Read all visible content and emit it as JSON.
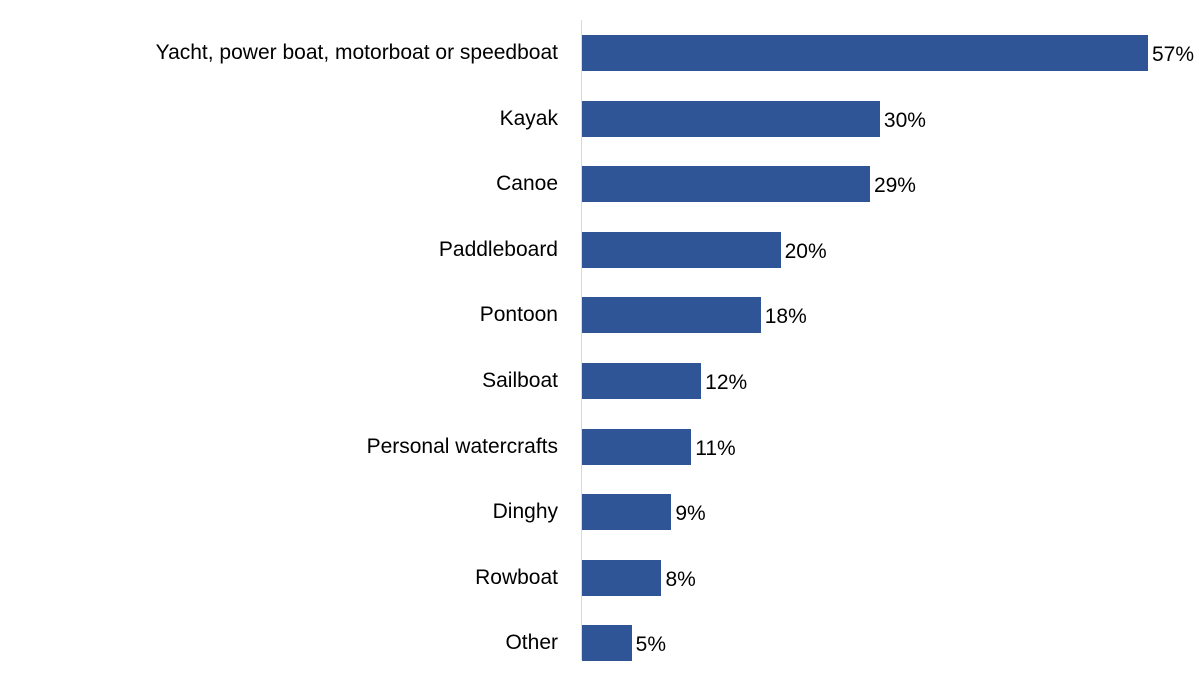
{
  "chart_data": {
    "type": "bar",
    "orientation": "horizontal",
    "title": "",
    "xlabel": "",
    "ylabel": "",
    "categories": [
      "Yacht, power boat, motorboat or speedboat",
      "Kayak",
      "Canoe",
      "Paddleboard",
      "Pontoon",
      "Sailboat",
      "Personal watercrafts",
      "Dinghy",
      "Rowboat",
      "Other"
    ],
    "values": [
      57,
      30,
      29,
      20,
      18,
      12,
      11,
      9,
      8,
      5
    ],
    "value_labels": [
      "57%",
      "30%",
      "29%",
      "20%",
      "18%",
      "12%",
      "11%",
      "9%",
      "8%",
      "5%"
    ],
    "unit": "%",
    "xlim": [
      0,
      57
    ],
    "grid": false,
    "legend": "none",
    "bar_color": "#2f5597"
  }
}
